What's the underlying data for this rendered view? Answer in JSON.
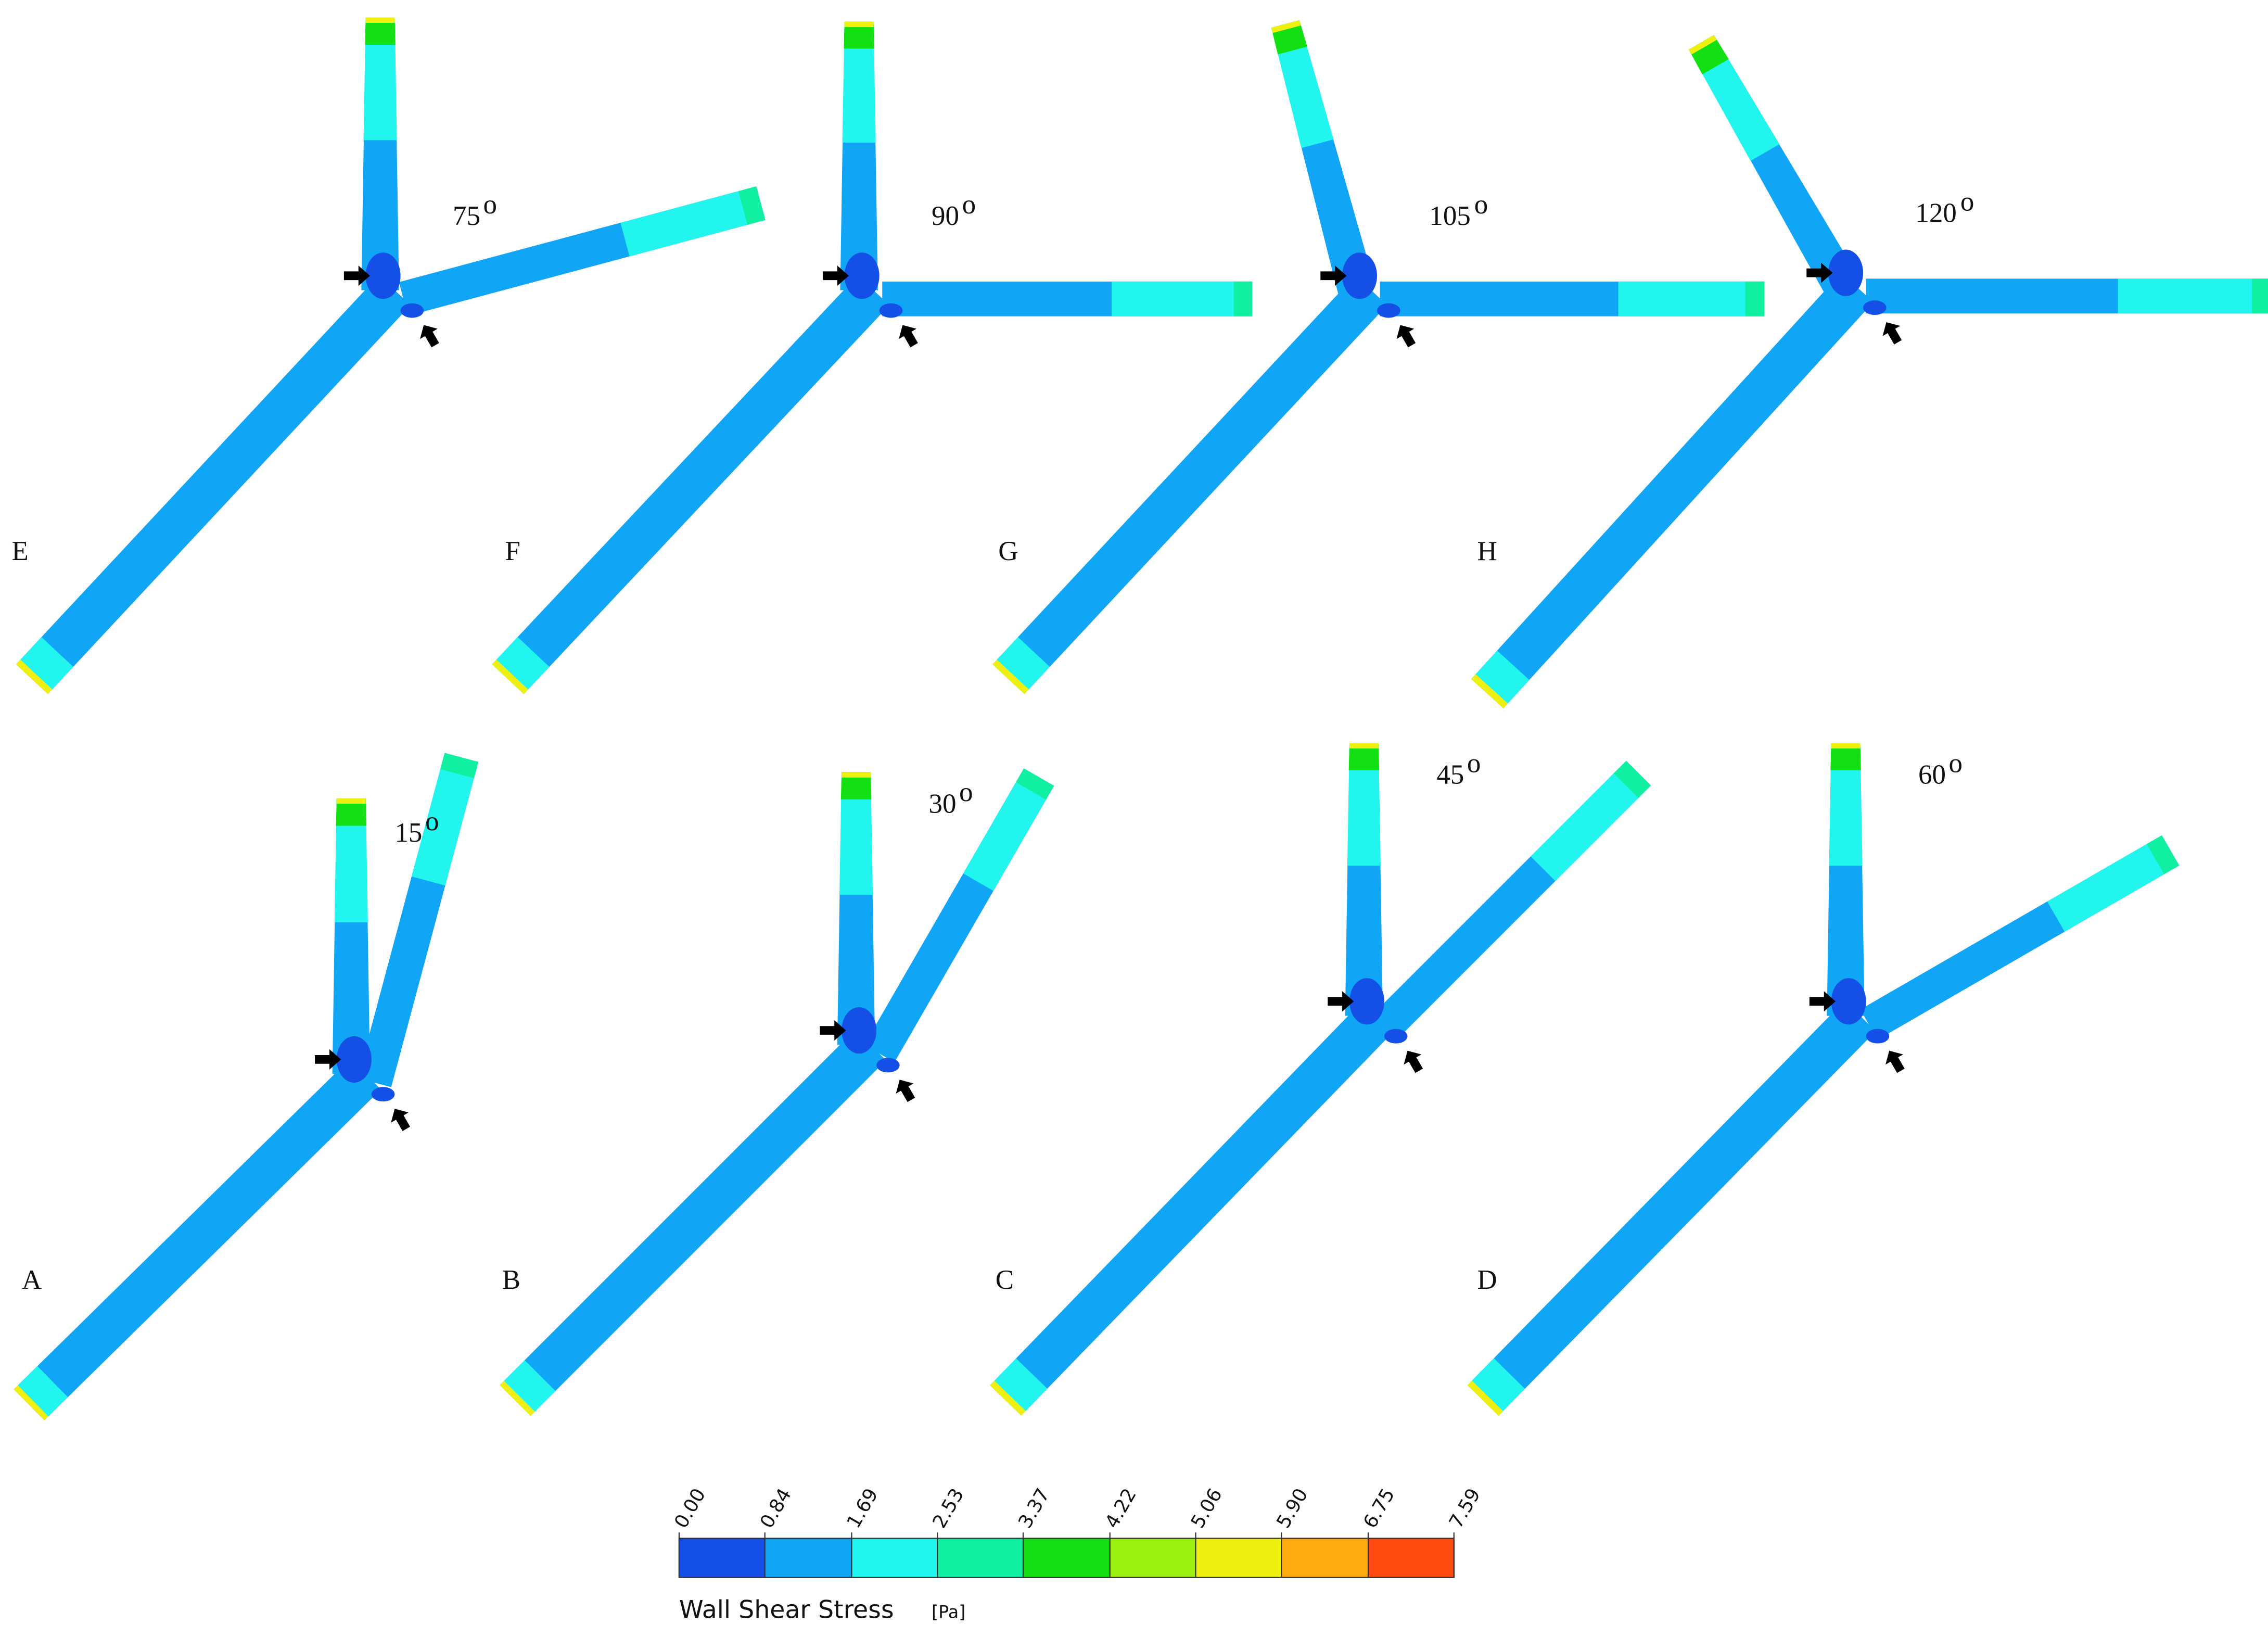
{
  "angle_mark": "o",
  "panels": [
    {
      "letter": "E",
      "angle": 75
    },
    {
      "letter": "F",
      "angle": 90
    },
    {
      "letter": "G",
      "angle": 105
    },
    {
      "letter": "H",
      "angle": 120
    },
    {
      "letter": "A",
      "angle": 15
    },
    {
      "letter": "B",
      "angle": 30
    },
    {
      "letter": "C",
      "angle": 45
    },
    {
      "letter": "D",
      "angle": 60
    }
  ],
  "colorbar": {
    "title": "Wall  Shear  Stress",
    "unit": "[Pa]",
    "ticks": [
      {
        "value": 0,
        "label": "0.00"
      },
      {
        "value": 0.84,
        "label": "0.84"
      },
      {
        "value": 1.69,
        "label": "1.69"
      },
      {
        "value": 2.53,
        "label": "2.53"
      },
      {
        "value": 3.37,
        "label": "3.37"
      },
      {
        "value": 4.22,
        "label": "4.22"
      },
      {
        "value": 5.06,
        "label": "5.06"
      },
      {
        "value": 5.9,
        "label": "5.90"
      },
      {
        "value": 6.75,
        "label": "6.75"
      },
      {
        "value": 7.59,
        "label": "7.59"
      }
    ],
    "colors": [
      "#1450e6",
      "#10a5f5",
      "#22f5ee",
      "#10f0a0",
      "#12e012",
      "#9bf00f",
      "#f0f010",
      "#ffaa10",
      "#ff4b10"
    ]
  }
}
